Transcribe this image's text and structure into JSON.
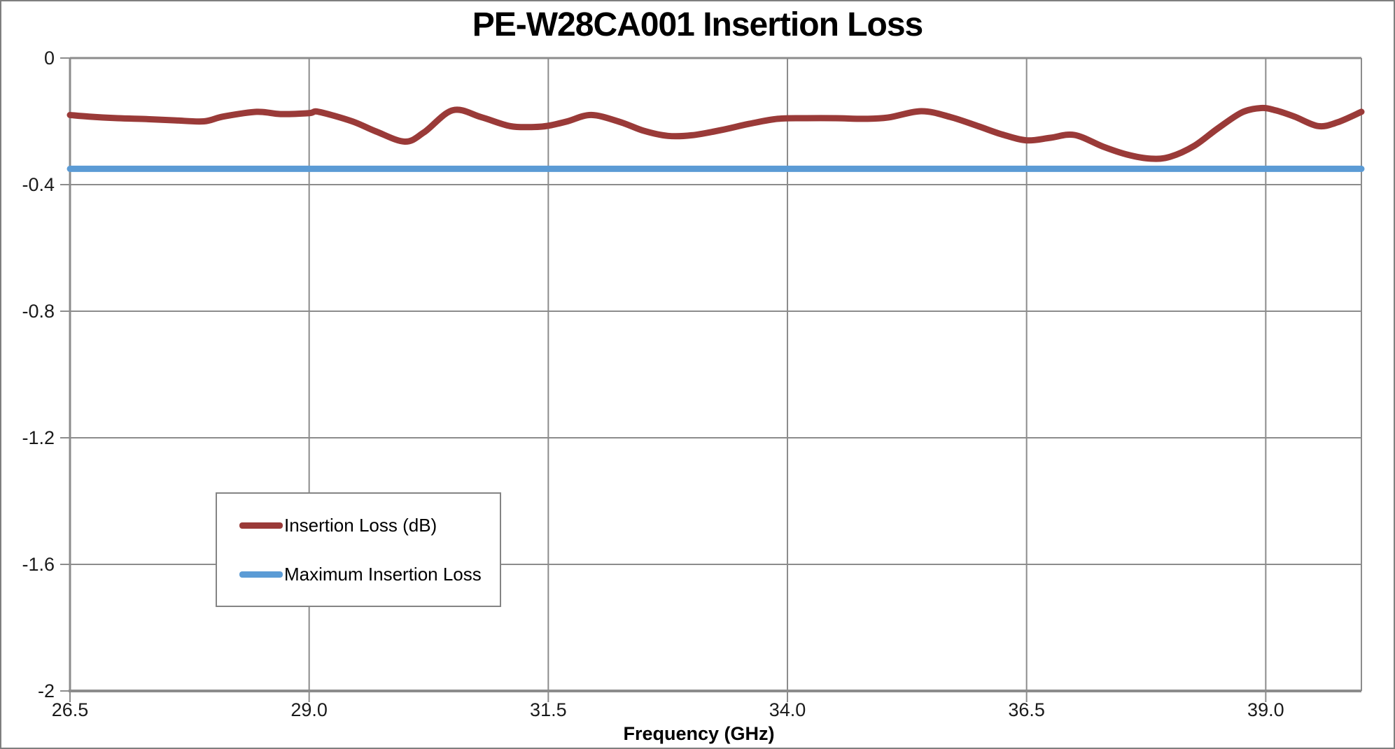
{
  "chart_data": {
    "type": "line",
    "title": "PE-W28CA001 Insertion Loss",
    "xlabel": "Frequency (GHz)",
    "ylabel": "",
    "xlim": [
      26.5,
      40.0
    ],
    "ylim": [
      -2,
      0
    ],
    "x_ticks": [
      26.5,
      29.0,
      31.5,
      34.0,
      36.5,
      39.0
    ],
    "x_tick_labels": [
      "26.5",
      "29.0",
      "31.5",
      "34.0",
      "36.5",
      "39.0"
    ],
    "y_ticks": [
      0,
      -0.4,
      -0.8,
      -1.2,
      -1.6,
      -2
    ],
    "y_tick_labels": [
      "0",
      "-0.4",
      "-0.8",
      "-1.2",
      "-1.6",
      "-2"
    ],
    "grid": true,
    "legend_position": "inside-lower-left",
    "series": [
      {
        "name": "Insertion Loss (dB)",
        "color": "#9A3A38",
        "smooth": true,
        "x": [
          26.5,
          26.7,
          27.0,
          27.3,
          27.6,
          27.9,
          28.1,
          28.45,
          28.7,
          29.0,
          29.1,
          29.45,
          29.7,
          30.0,
          30.2,
          30.5,
          30.8,
          31.1,
          31.35,
          31.5,
          31.7,
          31.95,
          32.25,
          32.5,
          32.75,
          33.0,
          33.3,
          33.6,
          33.9,
          34.2,
          34.5,
          34.8,
          35.05,
          35.4,
          35.7,
          36.0,
          36.25,
          36.5,
          36.75,
          37.0,
          37.3,
          37.55,
          37.8,
          38.0,
          38.25,
          38.5,
          38.75,
          38.95,
          39.1,
          39.3,
          39.55,
          39.75,
          40.0
        ],
        "y": [
          -0.18,
          -0.185,
          -0.19,
          -0.193,
          -0.197,
          -0.2,
          -0.185,
          -0.17,
          -0.177,
          -0.174,
          -0.17,
          -0.2,
          -0.232,
          -0.264,
          -0.235,
          -0.165,
          -0.187,
          -0.215,
          -0.218,
          -0.214,
          -0.2,
          -0.18,
          -0.202,
          -0.23,
          -0.246,
          -0.244,
          -0.228,
          -0.208,
          -0.192,
          -0.19,
          -0.19,
          -0.192,
          -0.188,
          -0.168,
          -0.186,
          -0.216,
          -0.242,
          -0.26,
          -0.252,
          -0.243,
          -0.28,
          -0.305,
          -0.318,
          -0.312,
          -0.278,
          -0.222,
          -0.172,
          -0.158,
          -0.165,
          -0.185,
          -0.215,
          -0.203,
          -0.17
        ]
      },
      {
        "name": "Maximum Insertion Loss",
        "color": "#5B9BD5",
        "smooth": false,
        "x": [
          26.5,
          40.0
        ],
        "y": [
          -0.35,
          -0.35
        ]
      }
    ],
    "colors": {
      "gridline": "#8C8C8C",
      "axis": "#8C8C8C",
      "text": "#1a1a1a"
    }
  }
}
